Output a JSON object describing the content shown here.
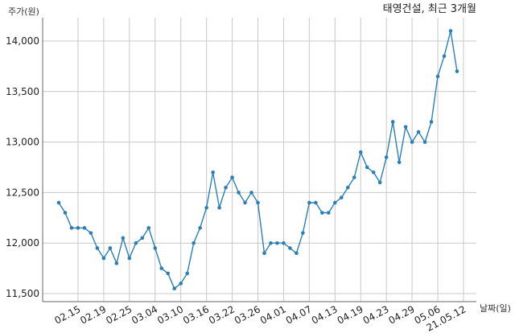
{
  "chart_data": {
    "type": "line",
    "title": "태영건설, 최근 3개월",
    "ylabel": "주가(원)",
    "xlabel": "날짜(일)",
    "ylim": [
      11450,
      14200
    ],
    "yticks": [
      11500,
      12000,
      12500,
      13000,
      13500,
      14000
    ],
    "ytick_labels": [
      "11,500",
      "12,000",
      "12,500",
      "13,000",
      "13,500",
      "14,000"
    ],
    "xtick_labels": [
      "02.15",
      "02.19",
      "02.25",
      "03.04",
      "03.10",
      "03.16",
      "03.22",
      "03.26",
      "04.01",
      "04.07",
      "04.13",
      "04.19",
      "04.23",
      "04.29",
      "05.06",
      "21.05.12"
    ],
    "xtick_index": [
      3,
      7,
      11,
      15,
      19,
      23,
      27,
      31,
      35,
      39,
      43,
      47,
      51,
      55,
      59,
      63
    ],
    "grid": true,
    "color": "#2d7fb2",
    "series": [
      {
        "values": [
          12400,
          12300,
          12150,
          12150,
          12150,
          12100,
          11950,
          11850,
          11950,
          11800,
          12050,
          11850,
          12000,
          12050,
          12150,
          11950,
          11750,
          11700,
          11550,
          11600,
          11700,
          12000,
          12150,
          12350,
          12700,
          12350,
          12550,
          12650,
          12500,
          12400,
          12500,
          12400,
          11900,
          12000,
          12000,
          12000,
          11950,
          11900,
          12100,
          12400,
          12400,
          12300,
          12300,
          12400,
          12450,
          12550,
          12650,
          12900,
          12750,
          12700,
          12600,
          12850,
          13200,
          12800,
          13150,
          13000,
          13100,
          13000,
          13200,
          13650,
          13850,
          14100,
          13700
        ]
      }
    ]
  }
}
